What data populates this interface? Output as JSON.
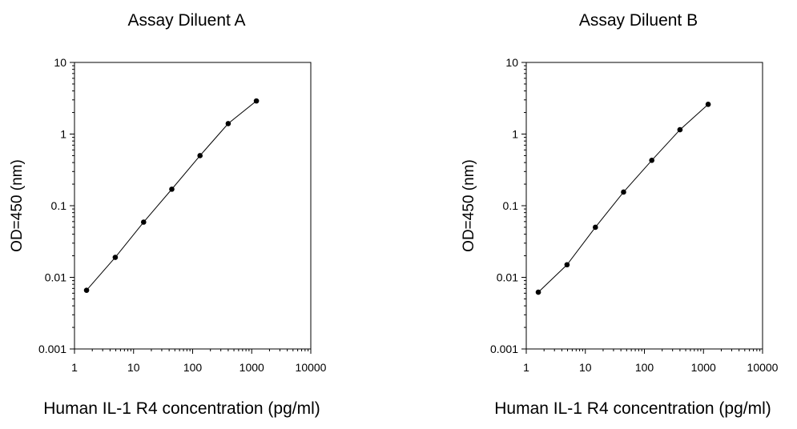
{
  "chart_data": [
    {
      "type": "line",
      "title": "Assay Diluent A",
      "xlabel": "Human IL-1 R4 concentration (pg/ml)",
      "ylabel": "OD=450 (nm)",
      "xscale": "log",
      "yscale": "log",
      "xlim": [
        1,
        10000
      ],
      "ylim": [
        0.001,
        10
      ],
      "xticks": [
        "1",
        "10",
        "100",
        "1000",
        "10000"
      ],
      "yticks": [
        "0.001",
        "0.01",
        "0.1",
        "1",
        "10"
      ],
      "grid": false,
      "series": [
        {
          "x": [
            1.6,
            4.9,
            14.8,
            44.4,
            133.3,
            400,
            1200
          ],
          "y": [
            0.0066,
            0.019,
            0.059,
            0.17,
            0.5,
            1.4,
            2.9
          ]
        }
      ]
    },
    {
      "type": "line",
      "title": "Assay Diluent B",
      "xlabel": "Human IL-1 R4 concentration (pg/ml)",
      "ylabel": "OD=450 (nm)",
      "xscale": "log",
      "yscale": "log",
      "xlim": [
        1,
        10000
      ],
      "ylim": [
        0.001,
        10
      ],
      "xticks": [
        "1",
        "10",
        "100",
        "1000",
        "10000"
      ],
      "yticks": [
        "0.001",
        "0.01",
        "0.1",
        "1",
        "10"
      ],
      "grid": false,
      "series": [
        {
          "x": [
            1.6,
            4.9,
            14.8,
            44.4,
            133.3,
            400,
            1200
          ],
          "y": [
            0.0062,
            0.015,
            0.05,
            0.155,
            0.43,
            1.15,
            2.6
          ]
        }
      ]
    }
  ]
}
